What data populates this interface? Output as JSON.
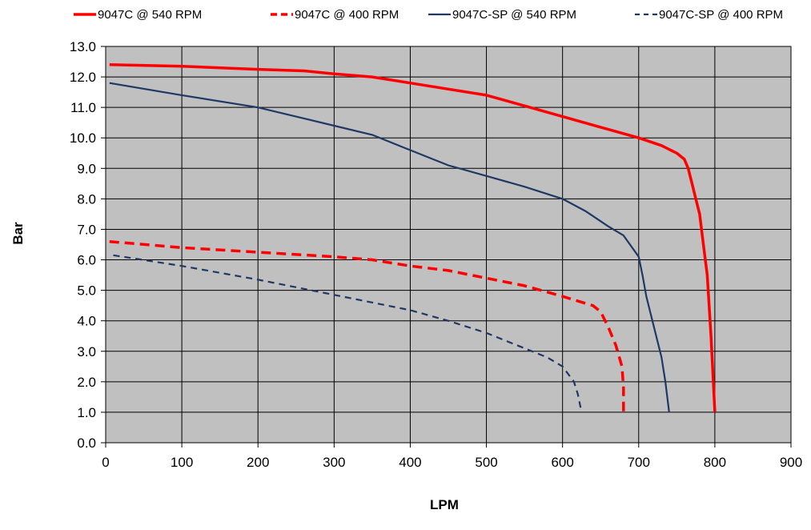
{
  "chart_data": {
    "type": "line",
    "title": "",
    "xlabel": "LPM",
    "ylabel": "Bar",
    "xlim": [
      0,
      900
    ],
    "ylim": [
      0,
      13
    ],
    "xticks": [
      0,
      100,
      200,
      300,
      400,
      500,
      600,
      700,
      800,
      900
    ],
    "xtick_labels": [
      "0",
      "100",
      "200",
      "300",
      "400",
      "500",
      "600",
      "700",
      "800",
      "900"
    ],
    "yticks": [
      0,
      1,
      2,
      3,
      4,
      5,
      6,
      7,
      8,
      9,
      10,
      11,
      12,
      13
    ],
    "ytick_labels": [
      "0.0",
      "1.0",
      "2.0",
      "3.0",
      "4.0",
      "5.0",
      "6.0",
      "7.0",
      "8.0",
      "9.0",
      "10.0",
      "11.0",
      "12.0",
      "13.0"
    ],
    "grid": true,
    "plot_background": "#c0c0c0",
    "legend_position": "top",
    "series": [
      {
        "name": "9047C @ 540 RPM",
        "color": "#ff0000",
        "dash": "solid",
        "points": [
          [
            5,
            12.4
          ],
          [
            100,
            12.35
          ],
          [
            200,
            12.25
          ],
          [
            260,
            12.2
          ],
          [
            300,
            12.1
          ],
          [
            350,
            12.0
          ],
          [
            400,
            11.8
          ],
          [
            450,
            11.6
          ],
          [
            500,
            11.4
          ],
          [
            550,
            11.05
          ],
          [
            600,
            10.7
          ],
          [
            650,
            10.35
          ],
          [
            700,
            10.0
          ],
          [
            730,
            9.75
          ],
          [
            750,
            9.5
          ],
          [
            760,
            9.3
          ],
          [
            765,
            9.0
          ],
          [
            770,
            8.5
          ],
          [
            775,
            8.0
          ],
          [
            780,
            7.5
          ],
          [
            785,
            6.5
          ],
          [
            790,
            5.5
          ],
          [
            795,
            3.5
          ],
          [
            800,
            1.0
          ]
        ]
      },
      {
        "name": "9047C @ 400 RPM",
        "color": "#ff0000",
        "dash": "dashed",
        "points": [
          [
            5,
            6.6
          ],
          [
            100,
            6.4
          ],
          [
            200,
            6.25
          ],
          [
            300,
            6.1
          ],
          [
            350,
            6.0
          ],
          [
            400,
            5.8
          ],
          [
            450,
            5.65
          ],
          [
            500,
            5.4
          ],
          [
            550,
            5.15
          ],
          [
            600,
            4.8
          ],
          [
            640,
            4.5
          ],
          [
            650,
            4.3
          ],
          [
            660,
            3.8
          ],
          [
            670,
            3.2
          ],
          [
            678,
            2.5
          ],
          [
            680,
            1.8
          ],
          [
            680,
            1.0
          ]
        ]
      },
      {
        "name": "9047C-SP @ 540 RPM",
        "color": "#1f3864",
        "dash": "solid",
        "points": [
          [
            5,
            11.8
          ],
          [
            100,
            11.4
          ],
          [
            200,
            11.0
          ],
          [
            300,
            10.4
          ],
          [
            350,
            10.1
          ],
          [
            400,
            9.6
          ],
          [
            450,
            9.1
          ],
          [
            500,
            8.75
          ],
          [
            550,
            8.4
          ],
          [
            600,
            8.0
          ],
          [
            630,
            7.6
          ],
          [
            660,
            7.1
          ],
          [
            680,
            6.8
          ],
          [
            700,
            6.1
          ],
          [
            705,
            5.5
          ],
          [
            710,
            4.8
          ],
          [
            720,
            3.8
          ],
          [
            730,
            2.8
          ],
          [
            735,
            2.0
          ],
          [
            740,
            1.0
          ]
        ]
      },
      {
        "name": "9047C-SP @ 400 RPM",
        "color": "#1f3864",
        "dash": "dashed",
        "points": [
          [
            10,
            6.15
          ],
          [
            100,
            5.8
          ],
          [
            200,
            5.35
          ],
          [
            300,
            4.85
          ],
          [
            400,
            4.35
          ],
          [
            450,
            4.0
          ],
          [
            500,
            3.6
          ],
          [
            550,
            3.1
          ],
          [
            580,
            2.8
          ],
          [
            600,
            2.5
          ],
          [
            615,
            2.0
          ],
          [
            620,
            1.6
          ],
          [
            625,
            1.0
          ]
        ]
      }
    ]
  }
}
